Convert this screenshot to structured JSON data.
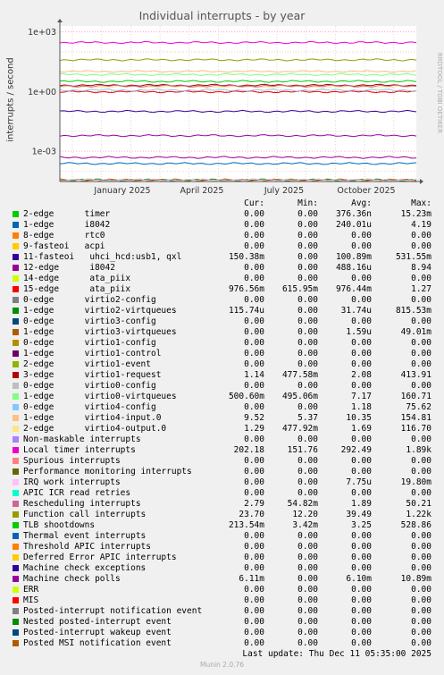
{
  "chart_data": {
    "type": "line",
    "title": "Individual interrupts - by year",
    "ylabel": "interrupts / second",
    "yscale": "log",
    "ylim": [
      3e-05,
      2000
    ],
    "y_ticks": [
      "1e+03",
      "1e+00",
      "1e-03"
    ],
    "x_ticks": [
      "January 2025",
      "April 2025",
      "July 2025",
      "October 2025"
    ],
    "grid": true,
    "side_label": "RRDTOOL / TOBI OETIKER",
    "columns": [
      "Cur:",
      "Min:",
      "Avg:",
      "Max:"
    ],
    "series": [
      {
        "name": "2-edge      timer",
        "color": "#00cc00",
        "cur": "0.00",
        "min": "0.00",
        "avg": "376.36n",
        "max": "15.23m"
      },
      {
        "name": "1-edge      i8042",
        "color": "#0066b3",
        "cur": "0.00",
        "min": "0.00",
        "avg": "240.01u",
        "max": "4.19"
      },
      {
        "name": "8-edge      rtc0",
        "color": "#ff8000",
        "cur": "0.00",
        "min": "0.00",
        "avg": "0.00",
        "max": "0.00"
      },
      {
        "name": "9-fasteoi   acpi",
        "color": "#ffcc00",
        "cur": "0.00",
        "min": "0.00",
        "avg": "0.00",
        "max": "0.00"
      },
      {
        "name": "11-fasteoi   uhci_hcd:usb1, qxl",
        "color": "#330099",
        "cur": "150.38m",
        "min": "0.00",
        "avg": "100.89m",
        "max": "531.55m"
      },
      {
        "name": "12-edge      i8042",
        "color": "#990099",
        "cur": "0.00",
        "min": "0.00",
        "avg": "488.16u",
        "max": "8.94"
      },
      {
        "name": "14-edge      ata_piix",
        "color": "#ccff00",
        "cur": "0.00",
        "min": "0.00",
        "avg": "0.00",
        "max": "0.00"
      },
      {
        "name": "15-edge      ata_piix",
        "color": "#ff0000",
        "cur": "976.56m",
        "min": "615.95m",
        "avg": "976.44m",
        "max": "1.27"
      },
      {
        "name": "0-edge      virtio2-config",
        "color": "#808080",
        "cur": "0.00",
        "min": "0.00",
        "avg": "0.00",
        "max": "0.00"
      },
      {
        "name": "1-edge      virtio2-virtqueues",
        "color": "#008f00",
        "cur": "115.74u",
        "min": "0.00",
        "avg": "31.74u",
        "max": "815.53m"
      },
      {
        "name": "0-edge      virtio3-config",
        "color": "#00487d",
        "cur": "0.00",
        "min": "0.00",
        "avg": "0.00",
        "max": "0.00"
      },
      {
        "name": "1-edge      virtio3-virtqueues",
        "color": "#b35a00",
        "cur": "0.00",
        "min": "0.00",
        "avg": "1.59u",
        "max": "49.01m"
      },
      {
        "name": "0-edge      virtio1-config",
        "color": "#b38f00",
        "cur": "0.00",
        "min": "0.00",
        "avg": "0.00",
        "max": "0.00"
      },
      {
        "name": "1-edge      virtio1-control",
        "color": "#6b006b",
        "cur": "0.00",
        "min": "0.00",
        "avg": "0.00",
        "max": "0.00"
      },
      {
        "name": "2-edge      virtio1-event",
        "color": "#8fb300",
        "cur": "0.00",
        "min": "0.00",
        "avg": "0.00",
        "max": "0.00"
      },
      {
        "name": "3-edge      virtio1-request",
        "color": "#b30000",
        "cur": "1.14",
        "min": "477.58m",
        "avg": "2.08",
        "max": "413.91"
      },
      {
        "name": "0-edge      virtio0-config",
        "color": "#bebebe",
        "cur": "0.00",
        "min": "0.00",
        "avg": "0.00",
        "max": "0.00"
      },
      {
        "name": "1-edge      virtio0-virtqueues",
        "color": "#80ff80",
        "cur": "500.60m",
        "min": "495.06m",
        "avg": "7.17",
        "max": "160.71"
      },
      {
        "name": "0-edge      virtio4-config",
        "color": "#80c9ff",
        "cur": "0.00",
        "min": "0.00",
        "avg": "1.18",
        "max": "75.62"
      },
      {
        "name": "1-edge      virtio4-input.0",
        "color": "#ffc080",
        "cur": "9.52",
        "min": "5.37",
        "avg": "10.35",
        "max": "154.81"
      },
      {
        "name": "2-edge      virtio4-output.0",
        "color": "#ffe680",
        "cur": "1.29",
        "min": "477.92m",
        "avg": "1.69",
        "max": "116.70"
      },
      {
        "name": "Non-maskable interrupts",
        "color": "#aa80ff",
        "cur": "0.00",
        "min": "0.00",
        "avg": "0.00",
        "max": "0.00"
      },
      {
        "name": "Local timer interrupts",
        "color": "#ee00cc",
        "cur": "202.18",
        "min": "151.76",
        "avg": "292.49",
        "max": "1.89k"
      },
      {
        "name": "Spurious interrupts",
        "color": "#ff8080",
        "cur": "0.00",
        "min": "0.00",
        "avg": "0.00",
        "max": "0.00"
      },
      {
        "name": "Performance monitoring interrupts",
        "color": "#666600",
        "cur": "0.00",
        "min": "0.00",
        "avg": "0.00",
        "max": "0.00"
      },
      {
        "name": "IRQ work interrupts",
        "color": "#ffbfff",
        "cur": "0.00",
        "min": "0.00",
        "avg": "7.75u",
        "max": "19.80m"
      },
      {
        "name": "APIC ICR read retries",
        "color": "#00ffcc",
        "cur": "0.00",
        "min": "0.00",
        "avg": "0.00",
        "max": "0.00"
      },
      {
        "name": "Rescheduling interrupts",
        "color": "#cc6699",
        "cur": "2.79",
        "min": "54.82m",
        "avg": "1.89",
        "max": "50.21"
      },
      {
        "name": "Function call interrupts",
        "color": "#999900",
        "cur": "23.70",
        "min": "12.20",
        "avg": "39.49",
        "max": "1.22k"
      },
      {
        "name": "TLB shootdowns",
        "color": "#00cc00",
        "cur": "213.54m",
        "min": "3.42m",
        "avg": "3.25",
        "max": "528.86"
      },
      {
        "name": "Thermal event interrupts",
        "color": "#0066b3",
        "cur": "0.00",
        "min": "0.00",
        "avg": "0.00",
        "max": "0.00"
      },
      {
        "name": "Threshold APIC interrupts",
        "color": "#ff8000",
        "cur": "0.00",
        "min": "0.00",
        "avg": "0.00",
        "max": "0.00"
      },
      {
        "name": "Deferred Error APIC interrupts",
        "color": "#ffcc00",
        "cur": "0.00",
        "min": "0.00",
        "avg": "0.00",
        "max": "0.00"
      },
      {
        "name": "Machine check exceptions",
        "color": "#330099",
        "cur": "0.00",
        "min": "0.00",
        "avg": "0.00",
        "max": "0.00"
      },
      {
        "name": "Machine check polls",
        "color": "#990099",
        "cur": "6.11m",
        "min": "0.00",
        "avg": "6.10m",
        "max": "10.89m"
      },
      {
        "name": "ERR",
        "color": "#ccff00",
        "cur": "0.00",
        "min": "0.00",
        "avg": "0.00",
        "max": "0.00"
      },
      {
        "name": "MIS",
        "color": "#ff0000",
        "cur": "0.00",
        "min": "0.00",
        "avg": "0.00",
        "max": "0.00"
      },
      {
        "name": "Posted-interrupt notification event",
        "color": "#808080",
        "cur": "0.00",
        "min": "0.00",
        "avg": "0.00",
        "max": "0.00"
      },
      {
        "name": "Nested posted-interrupt event",
        "color": "#008f00",
        "cur": "0.00",
        "min": "0.00",
        "avg": "0.00",
        "max": "0.00"
      },
      {
        "name": "Posted-interrupt wakeup event",
        "color": "#00487d",
        "cur": "0.00",
        "min": "0.00",
        "avg": "0.00",
        "max": "0.00"
      },
      {
        "name": "Posted MSI notification event",
        "color": "#b35a00",
        "cur": "0.00",
        "min": "0.00",
        "avg": "0.00",
        "max": "0.00"
      }
    ]
  },
  "last_update": "Last update:  Thu Dec 11 05:35:00 2025",
  "footer": "Munin 2.0.76"
}
